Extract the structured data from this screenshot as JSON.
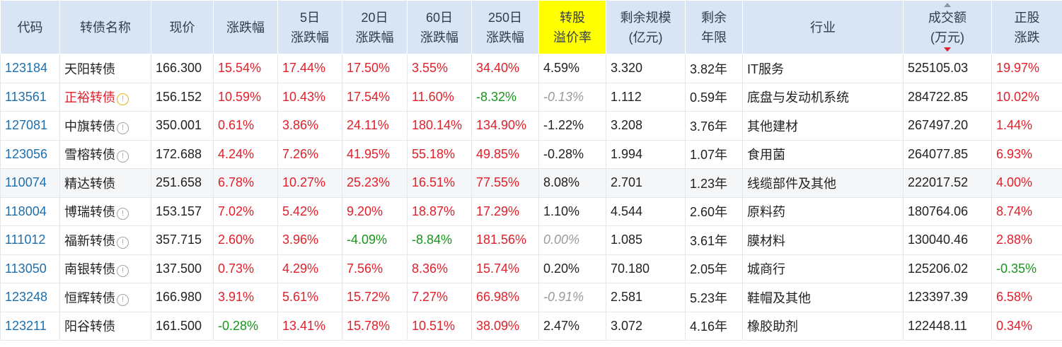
{
  "headers": [
    {
      "lines": [
        "代码"
      ]
    },
    {
      "lines": [
        "转债名称"
      ]
    },
    {
      "lines": [
        "现价"
      ]
    },
    {
      "lines": [
        "涨跌幅"
      ]
    },
    {
      "lines": [
        "5日",
        "涨跌幅"
      ]
    },
    {
      "lines": [
        "20日",
        "涨跌幅"
      ]
    },
    {
      "lines": [
        "60日",
        "涨跌幅"
      ]
    },
    {
      "lines": [
        "250日",
        "涨跌幅"
      ]
    },
    {
      "lines": [
        "转股",
        "溢价率"
      ],
      "highlight": true
    },
    {
      "lines": [
        "剩余规模",
        "(亿元)"
      ]
    },
    {
      "lines": [
        "剩余",
        "年限"
      ]
    },
    {
      "lines": [
        "行业"
      ]
    },
    {
      "lines": [
        "成交额",
        "(万元)"
      ],
      "sorted": "desc"
    },
    {
      "lines": [
        "正股",
        "涨跌"
      ]
    }
  ],
  "icon": {
    "glyph": "!",
    "name": "info-icon",
    "warn_name": "warning-icon"
  },
  "colors": {
    "up": "#e0202a",
    "down": "#18961c",
    "code": "#1d6fae",
    "header_bg": "#d9e5f5",
    "highlight": "#ffff00"
  },
  "rows": [
    {
      "code": "123184",
      "name": "天阳转债",
      "icon": "none",
      "name_color": "normal",
      "price": "166.300",
      "chg": "15.54%",
      "chg5": "17.44%",
      "chg20": "17.50%",
      "chg60": "3.55%",
      "chg250": "34.40%",
      "premium": "4.59%",
      "premium_style": "normal",
      "scale": "3.320",
      "years": "3.82年",
      "industry": "IT服务",
      "turnover": "525105.03",
      "stock_chg": "19.97%"
    },
    {
      "code": "113561",
      "name": "正裕转债",
      "icon": "warn",
      "name_color": "red",
      "price": "156.152",
      "chg": "10.59%",
      "chg5": "10.43%",
      "chg20": "17.54%",
      "chg60": "11.60%",
      "chg250": "-8.32%",
      "premium": "-0.13%",
      "premium_style": "grey",
      "scale": "1.112",
      "years": "0.59年",
      "industry": "底盘与发动机系统",
      "turnover": "284722.85",
      "stock_chg": "10.02%"
    },
    {
      "code": "127081",
      "name": "中旗转债",
      "icon": "info",
      "name_color": "normal",
      "price": "350.001",
      "chg": "0.61%",
      "chg5": "3.86%",
      "chg20": "24.11%",
      "chg60": "180.14%",
      "chg250": "134.90%",
      "premium": "-1.22%",
      "premium_style": "normal",
      "scale": "3.208",
      "years": "3.76年",
      "industry": "其他建材",
      "turnover": "267497.20",
      "stock_chg": "1.44%"
    },
    {
      "code": "123056",
      "name": "雪榕转债",
      "icon": "info",
      "name_color": "normal",
      "price": "172.688",
      "chg": "4.24%",
      "chg5": "7.26%",
      "chg20": "41.95%",
      "chg60": "55.18%",
      "chg250": "49.85%",
      "premium": "-0.28%",
      "premium_style": "normal",
      "scale": "1.994",
      "years": "1.07年",
      "industry": "食用菌",
      "turnover": "264077.85",
      "stock_chg": "6.93%"
    },
    {
      "code": "110074",
      "name": "精达转债",
      "icon": "none",
      "name_color": "normal",
      "price": "251.658",
      "chg": "6.78%",
      "chg5": "10.27%",
      "chg20": "25.23%",
      "chg60": "16.51%",
      "chg250": "77.55%",
      "premium": "8.08%",
      "premium_style": "normal",
      "scale": "2.701",
      "years": "1.23年",
      "industry": "线缆部件及其他",
      "turnover": "222017.52",
      "stock_chg": "4.00%"
    },
    {
      "code": "118004",
      "name": "博瑞转债",
      "icon": "info",
      "name_color": "normal",
      "price": "153.157",
      "chg": "7.02%",
      "chg5": "5.42%",
      "chg20": "9.20%",
      "chg60": "18.87%",
      "chg250": "17.29%",
      "premium": "1.10%",
      "premium_style": "normal",
      "scale": "4.544",
      "years": "2.60年",
      "industry": "原料药",
      "turnover": "180764.06",
      "stock_chg": "8.74%"
    },
    {
      "code": "111012",
      "name": "福新转债",
      "icon": "info",
      "name_color": "normal",
      "price": "357.715",
      "chg": "2.60%",
      "chg5": "3.96%",
      "chg20": "-4.09%",
      "chg60": "-8.84%",
      "chg250": "181.56%",
      "premium": "0.00%",
      "premium_style": "grey",
      "scale": "1.085",
      "years": "3.61年",
      "industry": "膜材料",
      "turnover": "130040.46",
      "stock_chg": "2.88%"
    },
    {
      "code": "113050",
      "name": "南银转债",
      "icon": "info",
      "name_color": "normal",
      "price": "137.500",
      "chg": "0.73%",
      "chg5": "4.29%",
      "chg20": "7.56%",
      "chg60": "8.36%",
      "chg250": "15.74%",
      "premium": "0.20%",
      "premium_style": "normal",
      "scale": "70.180",
      "years": "2.05年",
      "industry": "城商行",
      "turnover": "125206.02",
      "stock_chg": "-0.35%"
    },
    {
      "code": "123248",
      "name": "恒辉转债",
      "icon": "info",
      "name_color": "normal",
      "price": "166.980",
      "chg": "3.91%",
      "chg5": "5.61%",
      "chg20": "15.72%",
      "chg60": "7.27%",
      "chg250": "66.98%",
      "premium": "-0.91%",
      "premium_style": "grey",
      "scale": "2.581",
      "years": "5.23年",
      "industry": "鞋帽及其他",
      "turnover": "123397.39",
      "stock_chg": "6.58%"
    },
    {
      "code": "123211",
      "name": "阳谷转债",
      "icon": "none",
      "name_color": "normal",
      "price": "161.500",
      "chg": "-0.28%",
      "chg5": "13.41%",
      "chg20": "15.78%",
      "chg60": "10.51%",
      "chg250": "38.09%",
      "premium": "2.47%",
      "premium_style": "normal",
      "scale": "3.072",
      "years": "4.16年",
      "industry": "橡胶助剂",
      "turnover": "122448.11",
      "stock_chg": "0.34%"
    }
  ]
}
